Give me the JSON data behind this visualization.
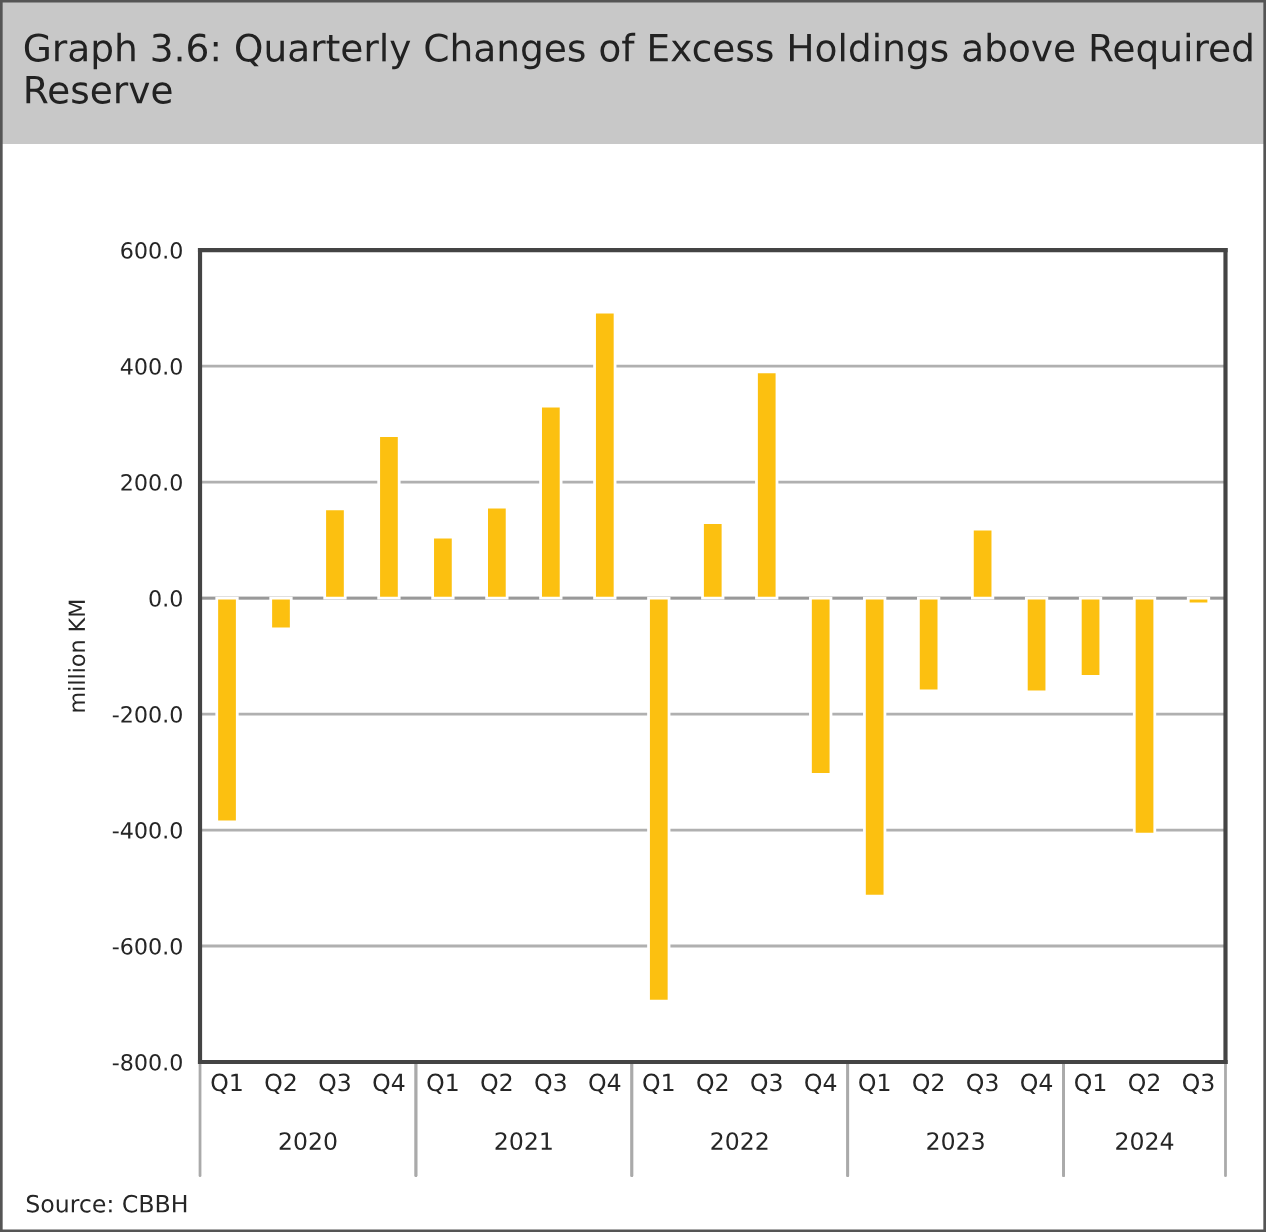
{
  "chart_data": {
    "type": "bar",
    "title": "Graph 3.6: Quarterly Changes of Excess Holdings above Required Reserve",
    "ylabel": "million KM",
    "categories": [
      "Q1",
      "Q2",
      "Q3",
      "Q4",
      "Q1",
      "Q2",
      "Q3",
      "Q4",
      "Q1",
      "Q2",
      "Q3",
      "Q4",
      "Q1",
      "Q2",
      "Q3",
      "Q4",
      "Q1",
      "Q2",
      "Q3"
    ],
    "values": [
      -386,
      -53,
      154,
      280,
      105,
      157,
      331,
      493,
      -695,
      130,
      390,
      -304,
      -514,
      -160,
      119,
      -162,
      -135,
      -407,
      -10
    ],
    "color": "#fcc010",
    "ylim": [
      -800,
      600
    ],
    "yticks": [
      {
        "value": -800,
        "label": "-800.0"
      },
      {
        "value": -600,
        "label": "-600.0"
      },
      {
        "value": -400,
        "label": "-400.0"
      },
      {
        "value": -200,
        "label": "-200.0"
      },
      {
        "value": 0,
        "label": "0.0"
      },
      {
        "value": 200,
        "label": "200.0"
      },
      {
        "value": 400,
        "label": "400.0"
      },
      {
        "value": 600,
        "label": "600.0"
      }
    ],
    "grid": "y",
    "annotations": [
      "2020",
      "2021",
      "2022",
      "2023",
      "2024",
      "Source: CBBH"
    ]
  }
}
